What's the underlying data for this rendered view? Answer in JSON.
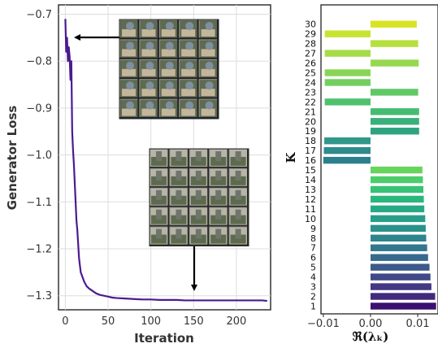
{
  "chart_data": [
    {
      "type": "line",
      "xlabel": "Iteration",
      "ylabel": "Generator Loss",
      "xlim": [
        -8,
        240
      ],
      "ylim": [
        -1.33,
        -0.68
      ],
      "x_ticks": [
        0,
        50,
        100,
        150,
        200
      ],
      "x_tick_labels": [
        "0",
        "50",
        "100",
        "150",
        "200"
      ],
      "y_ticks": [
        -0.7,
        -0.8,
        -0.9,
        -1.0,
        -1.1,
        -1.2,
        -1.3
      ],
      "y_tick_labels": [
        "−0.7",
        "−0.8",
        "−0.9",
        "−1.0",
        "−1.1",
        "−1.2",
        "−1.3"
      ],
      "grid": true,
      "line_color": "#4b1b8f",
      "series": [
        {
          "x": [
            0,
            1,
            2,
            3,
            4,
            5,
            6,
            7,
            8,
            9,
            10,
            11,
            12,
            13,
            14,
            15,
            16,
            18,
            20,
            22,
            25,
            28,
            32,
            36,
            40,
            45,
            50,
            55,
            60,
            70,
            80,
            90,
            100,
            110,
            120,
            130,
            140,
            150,
            160,
            170,
            180,
            190,
            200,
            210,
            220,
            230,
            236
          ],
          "y": [
            -0.71,
            -0.78,
            -0.75,
            -0.8,
            -0.77,
            -0.79,
            -0.84,
            -0.8,
            -0.95,
            -0.99,
            -1.02,
            -1.06,
            -1.1,
            -1.14,
            -1.16,
            -1.19,
            -1.22,
            -1.25,
            -1.26,
            -1.27,
            -1.28,
            -1.285,
            -1.29,
            -1.295,
            -1.298,
            -1.3,
            -1.302,
            -1.304,
            -1.305,
            -1.306,
            -1.307,
            -1.308,
            -1.308,
            -1.309,
            -1.309,
            -1.309,
            -1.31,
            -1.31,
            -1.31,
            -1.31,
            -1.31,
            -1.31,
            -1.31,
            -1.31,
            -1.31,
            -1.31,
            -1.311
          ]
        }
      ]
    },
    {
      "type": "bar",
      "orientation": "horizontal",
      "xlabel": "ℜ(λₖ)",
      "ylabel": "K",
      "xlim": [
        -0.0105,
        0.0143
      ],
      "x_ticks": [
        -0.01,
        0.0,
        0.01
      ],
      "x_tick_labels": [
        "−0.01",
        "0.00",
        "0.01"
      ],
      "categories": [
        "1",
        "2",
        "3",
        "4",
        "5",
        "6",
        "7",
        "8",
        "9",
        "10",
        "11",
        "12",
        "13",
        "14",
        "15",
        "16",
        "17",
        "18",
        "19",
        "20",
        "21",
        "22",
        "23",
        "24",
        "25",
        "26",
        "27",
        "28",
        "29",
        "30"
      ],
      "values": [
        0.0139,
        0.0137,
        0.0129,
        0.0127,
        0.0125,
        0.0122,
        0.012,
        0.0118,
        0.0117,
        0.0116,
        0.0114,
        0.0113,
        0.0112,
        0.0111,
        0.011,
        -0.01,
        -0.0099,
        -0.0098,
        0.0103,
        0.0103,
        0.0103,
        -0.0097,
        0.0101,
        -0.0097,
        -0.0097,
        0.0102,
        -0.0097,
        0.0101,
        -0.0097,
        0.0098
      ],
      "colors": [
        "#3b0f70",
        "#412a7d",
        "#433884",
        "#404a88",
        "#3c5a8b",
        "#37698c",
        "#32778d",
        "#2e848c",
        "#2a918c",
        "#279e89",
        "#26aa84",
        "#2ab77e",
        "#37c276",
        "#4ccd6a",
        "#67d55c",
        "#2c7f8d",
        "#2e8b8c",
        "#31978a",
        "#2ea37f",
        "#39b07a",
        "#46bc73",
        "#4fc16d",
        "#62c866",
        "#73cf5f",
        "#88d556",
        "#96d84f",
        "#a6dc47",
        "#b7e03d",
        "#c7e330",
        "#d8e323"
      ]
    }
  ]
}
